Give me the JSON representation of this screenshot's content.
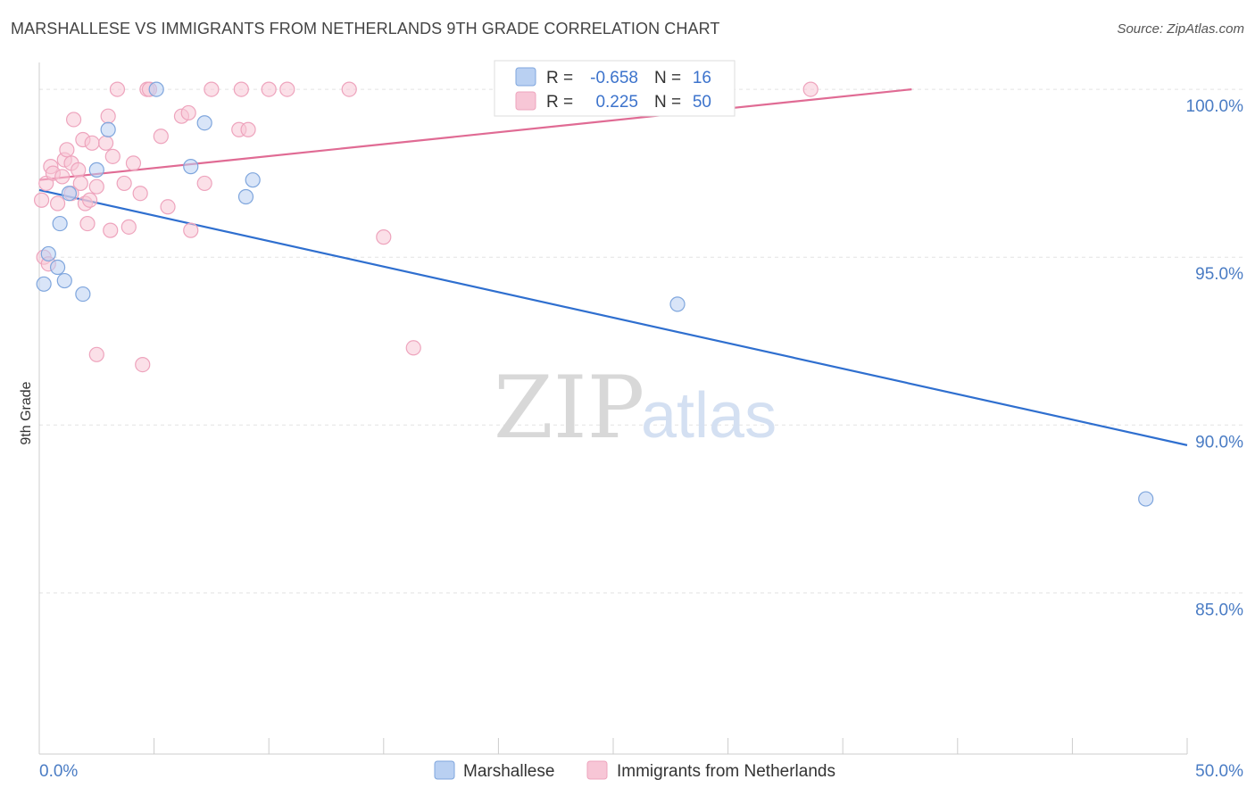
{
  "title": "MARSHALLESE VS IMMIGRANTS FROM NETHERLANDS 9TH GRADE CORRELATION CHART",
  "source": "Source: ZipAtlas.com",
  "watermark": {
    "zip": "ZIP",
    "atlas": "atlas"
  },
  "colors": {
    "blue_fill": "#b9d0f2",
    "blue_stroke": "#7fa6dd",
    "blue_line": "#2f6fcf",
    "pink_fill": "#f7c6d6",
    "pink_stroke": "#eea4bd",
    "pink_line": "#e06b94",
    "grid": "#e3e3e3",
    "tick_text": "#4a7cc4"
  },
  "stat_legend": [
    {
      "r_label": "R =",
      "r_value": "-0.658",
      "n_label": "N =",
      "n_value": "16"
    },
    {
      "r_label": "R =",
      "r_value": "0.225",
      "n_label": "N =",
      "n_value": "50"
    }
  ],
  "chart_data": {
    "type": "scatter",
    "title": "MARSHALLESE VS IMMIGRANTS FROM NETHERLANDS 9TH GRADE CORRELATION CHART",
    "xlabel": "",
    "ylabel": "9th Grade",
    "xlim": [
      0,
      50
    ],
    "ylim": [
      80.2,
      100.8
    ],
    "x_tick_labels": [
      "0.0%",
      "50.0%"
    ],
    "y_ticks": [
      85,
      90,
      95,
      100
    ],
    "y_tick_labels": [
      "85.0%",
      "90.0%",
      "95.0%",
      "100.0%"
    ],
    "grid": true,
    "legend_position": "bottom",
    "series": [
      {
        "name": "Marshallese",
        "points": [
          [
            0.2,
            94.2
          ],
          [
            0.4,
            95.1
          ],
          [
            0.8,
            94.7
          ],
          [
            0.9,
            96.0
          ],
          [
            1.1,
            94.3
          ],
          [
            1.3,
            96.9
          ],
          [
            1.9,
            93.9
          ],
          [
            2.5,
            97.6
          ],
          [
            3.0,
            98.8
          ],
          [
            5.1,
            100.0
          ],
          [
            6.6,
            97.7
          ],
          [
            7.2,
            99.0
          ],
          [
            9.0,
            96.8
          ],
          [
            9.3,
            97.3
          ],
          [
            27.8,
            93.6
          ],
          [
            48.2,
            87.8
          ]
        ],
        "trend": {
          "x": [
            0.0,
            50.0
          ],
          "y": [
            97.0,
            89.4
          ]
        }
      },
      {
        "name": "Immigrants from Netherlands",
        "points": [
          [
            0.1,
            96.7
          ],
          [
            0.2,
            95.0
          ],
          [
            0.3,
            97.2
          ],
          [
            0.4,
            94.8
          ],
          [
            0.5,
            97.7
          ],
          [
            0.6,
            97.5
          ],
          [
            0.8,
            96.6
          ],
          [
            1.0,
            97.4
          ],
          [
            1.1,
            97.9
          ],
          [
            1.2,
            98.2
          ],
          [
            1.4,
            96.9
          ],
          [
            1.4,
            97.8
          ],
          [
            1.5,
            99.1
          ],
          [
            1.7,
            97.6
          ],
          [
            1.8,
            97.2
          ],
          [
            1.9,
            98.5
          ],
          [
            2.0,
            96.6
          ],
          [
            2.1,
            96.0
          ],
          [
            2.2,
            96.7
          ],
          [
            2.3,
            98.4
          ],
          [
            2.5,
            97.1
          ],
          [
            2.5,
            92.1
          ],
          [
            2.9,
            98.4
          ],
          [
            3.0,
            99.2
          ],
          [
            3.1,
            95.8
          ],
          [
            3.2,
            98.0
          ],
          [
            3.4,
            100.0
          ],
          [
            3.7,
            97.2
          ],
          [
            3.9,
            95.9
          ],
          [
            4.1,
            97.8
          ],
          [
            4.4,
            96.9
          ],
          [
            4.5,
            91.8
          ],
          [
            4.7,
            100.0
          ],
          [
            4.8,
            100.0
          ],
          [
            5.3,
            98.6
          ],
          [
            5.6,
            96.5
          ],
          [
            6.2,
            99.2
          ],
          [
            6.5,
            99.3
          ],
          [
            6.6,
            95.8
          ],
          [
            7.2,
            97.2
          ],
          [
            7.5,
            100.0
          ],
          [
            8.7,
            98.8
          ],
          [
            8.8,
            100.0
          ],
          [
            9.1,
            98.8
          ],
          [
            10.0,
            100.0
          ],
          [
            10.8,
            100.0
          ],
          [
            13.5,
            100.0
          ],
          [
            15.0,
            95.6
          ],
          [
            16.3,
            92.3
          ],
          [
            33.6,
            100.0
          ]
        ],
        "trend": {
          "x": [
            0.0,
            38.0
          ],
          "y": [
            97.3,
            100.0
          ]
        }
      }
    ]
  }
}
